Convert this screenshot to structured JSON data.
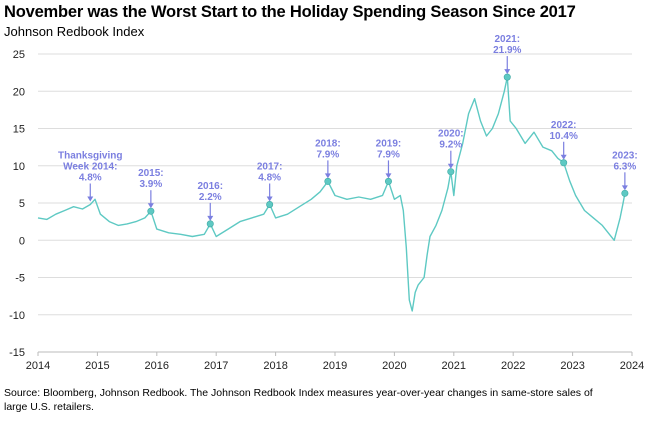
{
  "title": "November was the Worst Start to the Holiday Spending Season Since 2017",
  "subtitle": "Johnson Redbook Index",
  "source": "Source: Bloomberg, Johnson Redbook. The Johnson Redbook Index measures year-over-year changes in same-store sales of large U.S. retailers.",
  "colors": {
    "line": "#5ec9c3",
    "annotation": "#7b7fe0",
    "grid": "#dddddd"
  },
  "chart_data": {
    "type": "line",
    "title": "November was the Worst Start to the Holiday Spending Season Since 2017",
    "subtitle": "Johnson Redbook Index",
    "xlabel": "",
    "ylabel": "",
    "xlim": [
      2014,
      2024
    ],
    "ylim": [
      -15,
      25
    ],
    "grid": "horizontal",
    "x_ticks": [
      2014,
      2015,
      2016,
      2017,
      2018,
      2019,
      2020,
      2021,
      2022,
      2023,
      2024
    ],
    "y_ticks": [
      -15,
      -10,
      -5,
      0,
      5,
      10,
      15,
      20,
      25
    ],
    "series": [
      {
        "name": "Johnson Redbook Index (YoY %)",
        "x": [
          2014.0,
          2014.15,
          2014.3,
          2014.45,
          2014.6,
          2014.75,
          2014.88,
          2014.96,
          2015.05,
          2015.2,
          2015.35,
          2015.5,
          2015.65,
          2015.8,
          2015.9,
          2016.0,
          2016.2,
          2016.4,
          2016.6,
          2016.8,
          2016.9,
          2017.0,
          2017.2,
          2017.4,
          2017.6,
          2017.8,
          2017.9,
          2018.0,
          2018.2,
          2018.4,
          2018.6,
          2018.75,
          2018.88,
          2019.0,
          2019.2,
          2019.4,
          2019.6,
          2019.8,
          2019.9,
          2020.0,
          2020.1,
          2020.15,
          2020.2,
          2020.25,
          2020.3,
          2020.35,
          2020.4,
          2020.5,
          2020.55,
          2020.6,
          2020.7,
          2020.8,
          2020.9,
          2020.95,
          2021.0,
          2021.05,
          2021.15,
          2021.25,
          2021.35,
          2021.45,
          2021.55,
          2021.65,
          2021.75,
          2021.85,
          2021.9,
          2021.95,
          2022.05,
          2022.2,
          2022.35,
          2022.5,
          2022.65,
          2022.75,
          2022.85,
          2022.95,
          2023.05,
          2023.2,
          2023.35,
          2023.5,
          2023.6,
          2023.7,
          2023.8,
          2023.85,
          2023.88
        ],
        "values": [
          3.0,
          2.8,
          3.5,
          4.0,
          4.5,
          4.2,
          4.8,
          5.5,
          3.5,
          2.5,
          2.0,
          2.2,
          2.5,
          3.0,
          3.9,
          1.5,
          1.0,
          0.8,
          0.5,
          0.8,
          2.2,
          0.5,
          1.5,
          2.5,
          3.0,
          3.5,
          4.8,
          3.0,
          3.5,
          4.5,
          5.5,
          6.5,
          7.9,
          6.0,
          5.5,
          5.8,
          5.5,
          6.0,
          7.9,
          5.5,
          6.0,
          4.0,
          -1.0,
          -8.0,
          -9.5,
          -7.0,
          -6.0,
          -5.0,
          -2.0,
          0.5,
          2.0,
          4.0,
          7.0,
          9.2,
          6.0,
          10.0,
          13.0,
          17.0,
          19.0,
          16.0,
          14.0,
          15.0,
          17.0,
          20.0,
          21.9,
          16.0,
          15.0,
          13.0,
          14.5,
          12.5,
          12.0,
          11.0,
          10.4,
          8.0,
          6.0,
          4.0,
          3.0,
          2.0,
          1.0,
          0.0,
          3.0,
          5.0,
          6.3
        ]
      }
    ],
    "annotations": [
      {
        "label_lines": [
          "Thanksgiving",
          "Week 2014:",
          "4.8%"
        ],
        "x": 2014.88,
        "y": 4.8,
        "marker": false
      },
      {
        "label_lines": [
          "2015:",
          "3.9%"
        ],
        "x": 2015.9,
        "y": 3.9,
        "marker": true
      },
      {
        "label_lines": [
          "2016:",
          "2.2%"
        ],
        "x": 2016.9,
        "y": 2.2,
        "marker": true
      },
      {
        "label_lines": [
          "2017:",
          "4.8%"
        ],
        "x": 2017.9,
        "y": 4.8,
        "marker": true
      },
      {
        "label_lines": [
          "2018:",
          "7.9%"
        ],
        "x": 2018.88,
        "y": 7.9,
        "marker": true
      },
      {
        "label_lines": [
          "2019:",
          "7.9%"
        ],
        "x": 2019.9,
        "y": 7.9,
        "marker": true
      },
      {
        "label_lines": [
          "2020:",
          "9.2%"
        ],
        "x": 2020.95,
        "y": 9.2,
        "marker": true
      },
      {
        "label_lines": [
          "2021:",
          "21.9%"
        ],
        "x": 2021.9,
        "y": 21.9,
        "marker": true
      },
      {
        "label_lines": [
          "2022:",
          "10.4%"
        ],
        "x": 2022.85,
        "y": 10.4,
        "marker": true
      },
      {
        "label_lines": [
          "2023:",
          "6.3%"
        ],
        "x": 2023.88,
        "y": 6.3,
        "marker": true
      }
    ]
  }
}
